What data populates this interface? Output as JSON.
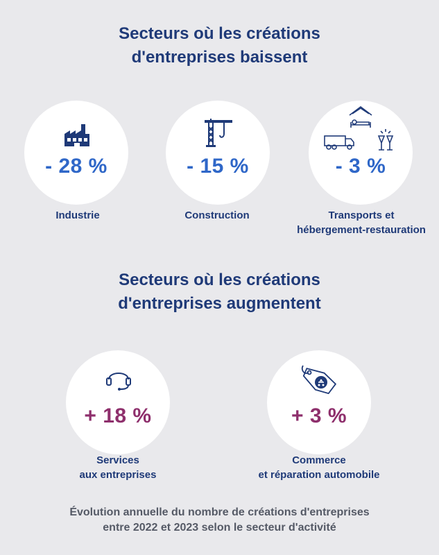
{
  "section_down": {
    "title_line1": "Secteurs où les créations",
    "title_line2": "d'entreprises baissent",
    "items": [
      {
        "value": "- 28 %",
        "label_line1": "Industrie",
        "label_line2": "",
        "icon": "factory-icon"
      },
      {
        "value": "- 15 %",
        "label_line1": "Construction",
        "label_line2": "",
        "icon": "crane-icon"
      },
      {
        "value": "- 3 %",
        "label_line1": "Transports et",
        "label_line2": "hébergement-restauration",
        "icon": "transport-hospitality-icon"
      }
    ]
  },
  "section_up": {
    "title_line1": "Secteurs où les créations",
    "title_line2": "d'entreprises augmentent",
    "items": [
      {
        "value": "+ 18 %",
        "label_line1": "Services",
        "label_line2": "aux entreprises",
        "icon": "headset-icon"
      },
      {
        "value": "+ 3 %",
        "label_line1": "Commerce",
        "label_line2": "et réparation automobile",
        "icon": "price-tag-icon"
      }
    ]
  },
  "caption": {
    "line1": "Évolution annuelle du nombre de créations d'entreprises",
    "line2": "entre 2022 et 2023 selon le secteur d'activité"
  },
  "colors": {
    "background": "#e9e9ec",
    "title": "#1f3a78",
    "decrease": "#2f67c8",
    "increase": "#8e2f6c",
    "caption": "#555a66"
  }
}
